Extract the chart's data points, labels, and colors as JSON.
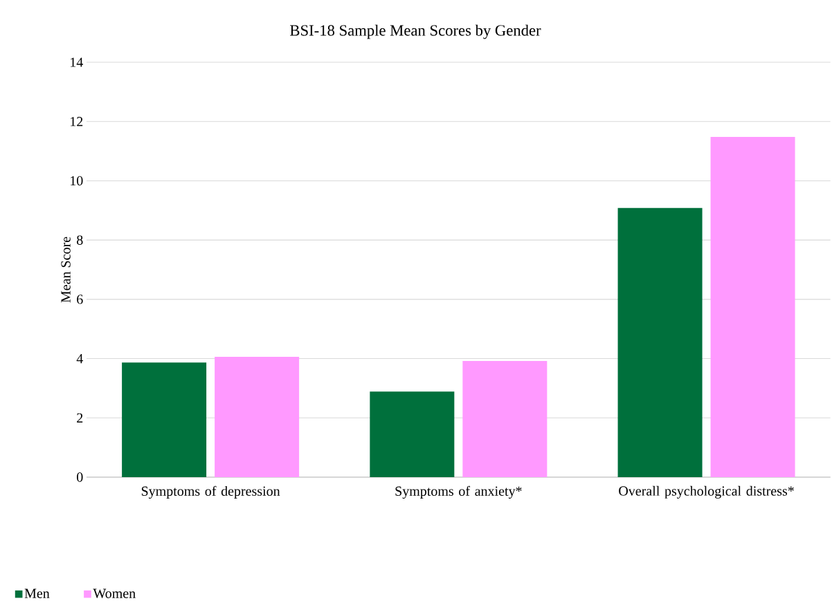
{
  "chart_data": {
    "type": "bar",
    "title": "BSI-18 Sample Mean Scores by Gender",
    "ylabel": "Mean Score",
    "categories": [
      "Symptoms of depression",
      "Symptoms of anxiety*",
      "Overall psychological distress*"
    ],
    "series": [
      {
        "name": "Men",
        "color": "#00703c",
        "values": [
          3.87,
          2.89,
          9.08
        ]
      },
      {
        "name": "Women",
        "color": "#ff99ff",
        "values": [
          4.06,
          3.92,
          11.48
        ]
      }
    ],
    "ylim": [
      0,
      14
    ],
    "yticks": [
      0,
      2,
      4,
      6,
      8,
      10,
      12,
      14
    ],
    "grid": "y",
    "legend": "bottom left"
  }
}
